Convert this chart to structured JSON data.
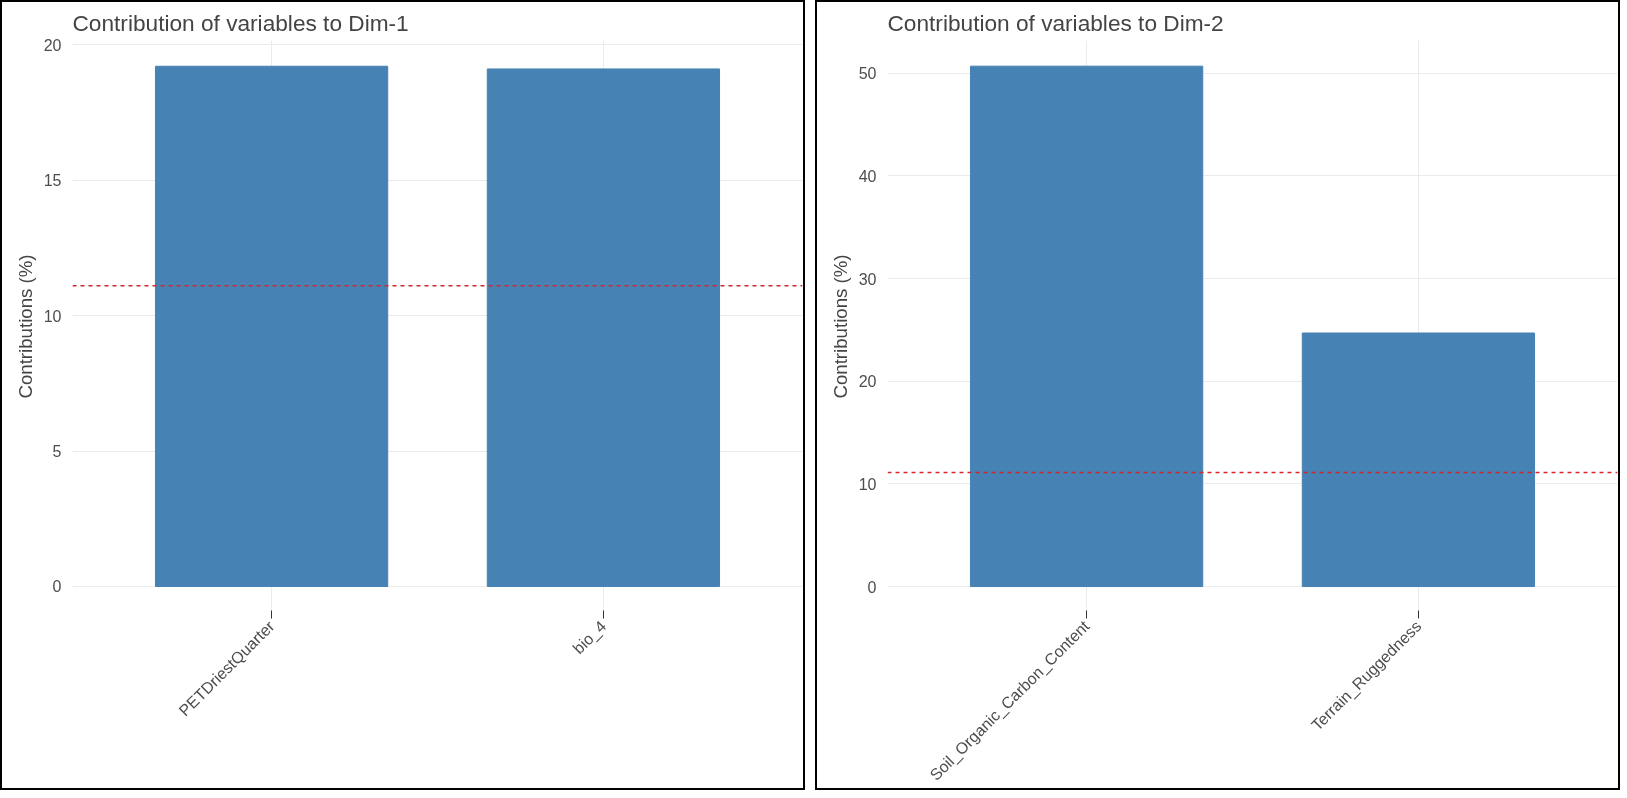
{
  "chart_data": [
    {
      "type": "bar",
      "title": "Contribution of variables to Dim-1",
      "ylabel": "Contributions (%)",
      "categories": [
        "PETDriestQuarter",
        "bio_4"
      ],
      "values": [
        19.2,
        19.1
      ],
      "color": "#4682b4",
      "ylim": [
        -0.96,
        20.15
      ],
      "yticks": [
        0,
        5,
        10,
        15,
        20
      ],
      "grid": true,
      "ref_lines": [
        {
          "axis": "y",
          "value": 11.1,
          "color": "#d62728",
          "line_style": "dashed"
        }
      ]
    },
    {
      "type": "bar",
      "title": "Contribution of variables to Dim-2",
      "ylabel": "Contributions (%)",
      "categories": [
        "Soil_Organic_Carbon_Content",
        "Terrain_Ruggedness"
      ],
      "values": [
        50.7,
        24.7
      ],
      "color": "#4682b4",
      "ylim": [
        -2.53,
        53.2
      ],
      "yticks": [
        0,
        10,
        20,
        30,
        40,
        50
      ],
      "grid": true,
      "ref_lines": [
        {
          "axis": "y",
          "value": 11.1,
          "color": "#d62728",
          "line_style": "dashed"
        }
      ]
    }
  ]
}
